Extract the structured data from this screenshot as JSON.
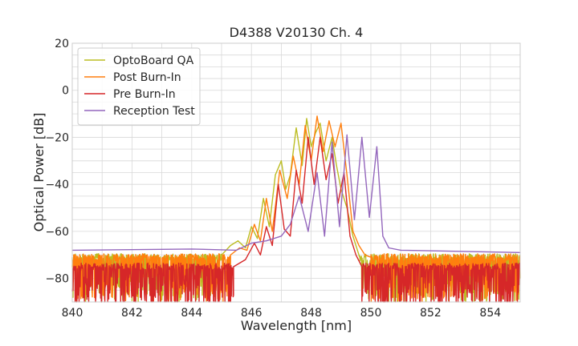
{
  "chart_data": {
    "type": "line",
    "title": "D4388 V20130 Ch. 4",
    "xlabel": "Wavelength [nm]",
    "ylabel": "Optical Power [dB]",
    "xlim": [
      840,
      855
    ],
    "ylim": [
      -90,
      20
    ],
    "xticks": [
      840,
      842,
      844,
      846,
      848,
      850,
      852,
      854
    ],
    "yticks": [
      20,
      0,
      -20,
      -40,
      -60,
      -80
    ],
    "xtick_labels": [
      "840",
      "842",
      "844",
      "846",
      "848",
      "850",
      "852",
      "854"
    ],
    "ytick_labels": [
      "20",
      "0",
      "−20",
      "−40",
      "−60",
      "−80"
    ],
    "grid": true,
    "legend_position": "top-left",
    "noise_floor_note": "Below ~845.5 nm and above ~849.5 nm the three lower traces show a noisy floor between about -70 and -90 dB.",
    "series": [
      {
        "name": "OptoBoard QA",
        "color": "#bcbd22",
        "floor": -71,
        "x": [
          845.0,
          845.3,
          845.55,
          845.8,
          846.0,
          846.2,
          846.4,
          846.6,
          846.8,
          847.0,
          847.15,
          847.3,
          847.5,
          847.7,
          847.85,
          848.0,
          848.15,
          848.3,
          848.5,
          848.7,
          848.85,
          849.0,
          849.2,
          849.4,
          849.6
        ],
        "y": [
          -70,
          -66,
          -64,
          -67,
          -58,
          -63,
          -46,
          -58,
          -36,
          -30,
          -42,
          -36,
          -16,
          -32,
          -12,
          -24,
          -18,
          -14,
          -30,
          -20,
          -32,
          -42,
          -50,
          -62,
          -70
        ]
      },
      {
        "name": "Post Burn-In",
        "color": "#ff7f0e",
        "floor": -71,
        "x": [
          845.3,
          845.6,
          845.85,
          846.1,
          846.3,
          846.5,
          846.7,
          846.95,
          847.2,
          847.4,
          847.6,
          847.8,
          848.0,
          848.2,
          848.4,
          848.6,
          848.8,
          849.0,
          849.2,
          849.4,
          849.6,
          849.8,
          850.0
        ],
        "y": [
          -70,
          -67,
          -68,
          -57,
          -64,
          -46,
          -60,
          -34,
          -46,
          -28,
          -40,
          -15,
          -30,
          -11,
          -26,
          -13,
          -24,
          -14,
          -36,
          -60,
          -66,
          -70,
          -71
        ]
      },
      {
        "name": "Pre Burn-In",
        "color": "#d62728",
        "floor": -75,
        "x": [
          845.4,
          845.8,
          846.1,
          846.3,
          846.5,
          846.7,
          846.9,
          847.1,
          847.3,
          847.5,
          847.7,
          847.9,
          848.1,
          848.3,
          848.5,
          848.7,
          848.9,
          849.1,
          849.3,
          849.5,
          849.7
        ],
        "y": [
          -75,
          -72,
          -65,
          -70,
          -58,
          -66,
          -40,
          -59,
          -62,
          -34,
          -48,
          -20,
          -40,
          -20,
          -38,
          -27,
          -48,
          -35,
          -62,
          -70,
          -75
        ]
      },
      {
        "name": "Reception Test",
        "color": "#9467bd",
        "floor": -68,
        "x": [
          840.0,
          844.0,
          845.5,
          846.0,
          846.5,
          847.0,
          847.3,
          847.6,
          847.9,
          848.2,
          848.45,
          848.7,
          848.95,
          849.2,
          849.45,
          849.7,
          849.95,
          850.2,
          850.4,
          850.6,
          851.0,
          855.0
        ],
        "y": [
          -68,
          -67.5,
          -68,
          -65,
          -64,
          -62,
          -57,
          -45,
          -60,
          -35,
          -62,
          -22,
          -58,
          -19,
          -55,
          -20,
          -54,
          -24,
          -62,
          -67,
          -68,
          -69
        ]
      }
    ]
  }
}
